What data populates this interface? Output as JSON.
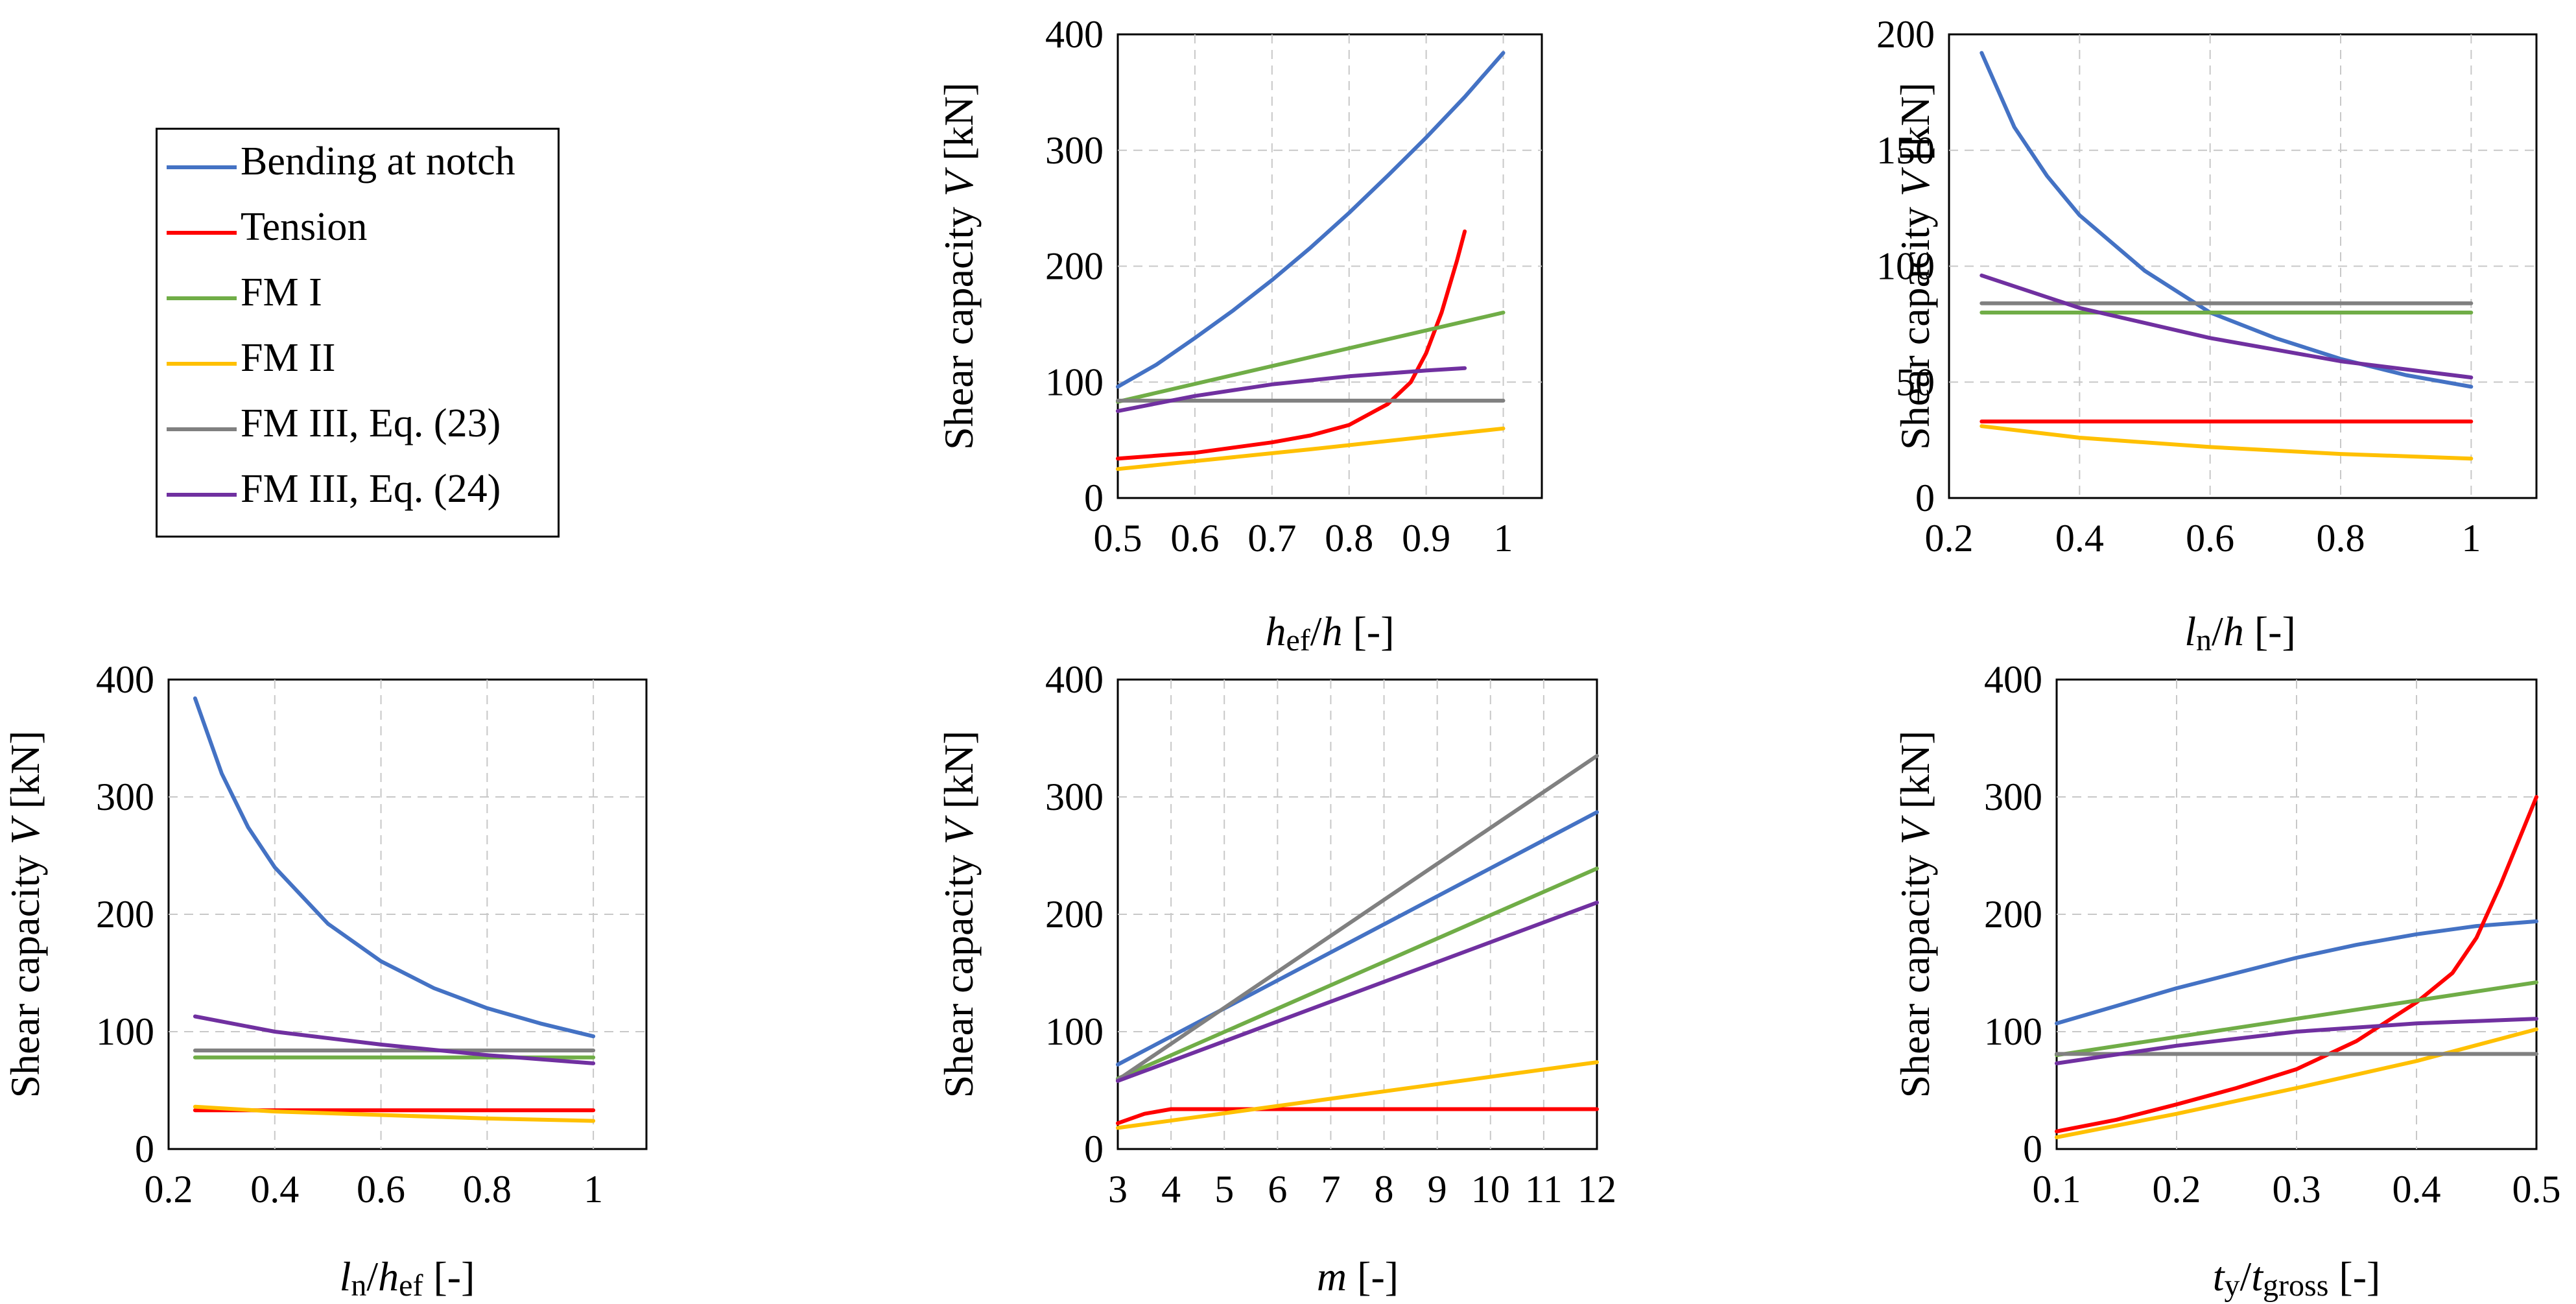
{
  "legend": {
    "items": [
      {
        "label": "Bending at notch",
        "color": "#4472C4"
      },
      {
        "label": "Tension",
        "color": "#FF0000"
      },
      {
        "label": "FM I",
        "color": "#70AD47"
      },
      {
        "label": "FM II",
        "color": "#FFC000"
      },
      {
        "label": "FM III, Eq. (23)",
        "color": "#808080"
      },
      {
        "label": "FM III, Eq. (24)",
        "color": "#7030A0"
      }
    ]
  },
  "chart_data": [
    {
      "id": "hef",
      "type": "line",
      "ylabel": "Shear capacity  V [kN]",
      "xlabel": [
        {
          "t": "h",
          "i": true
        },
        {
          "t": "ef",
          "s": true
        },
        {
          "t": "/"
        },
        {
          "t": "h",
          "i": true
        },
        {
          "t": " [-]"
        }
      ],
      "xlim": [
        0.5,
        1.05
      ],
      "ylim": [
        0,
        400
      ],
      "xticks": [
        0.5,
        0.6,
        0.7,
        0.8,
        0.9,
        1
      ],
      "xtick_labels": [
        "0.5",
        "0.6",
        "0.7",
        "0.8",
        "0.9",
        "1"
      ],
      "yticks": [
        0,
        100,
        200,
        300,
        400
      ],
      "ytick_labels": [
        "0",
        "100",
        "200",
        "300",
        "400"
      ],
      "series": [
        {
          "name": "Bending at notch",
          "x": [
            0.5,
            0.55,
            0.6,
            0.65,
            0.7,
            0.75,
            0.8,
            0.85,
            0.9,
            0.95,
            1.0
          ],
          "values": [
            96,
            115,
            138,
            162,
            188,
            216,
            246,
            278,
            311,
            346,
            384
          ]
        },
        {
          "name": "Tension",
          "x": [
            0.5,
            0.6,
            0.7,
            0.75,
            0.8,
            0.85,
            0.88,
            0.9,
            0.92,
            0.94,
            0.95
          ],
          "values": [
            34,
            39,
            48,
            54,
            63,
            81,
            100,
            125,
            160,
            205,
            230
          ]
        },
        {
          "name": "FM I",
          "x": [
            0.5,
            1.0
          ],
          "values": [
            83,
            160
          ]
        },
        {
          "name": "FM II",
          "x": [
            0.5,
            0.75,
            1.0
          ],
          "values": [
            25,
            42,
            60
          ]
        },
        {
          "name": "FM III, Eq. (23)",
          "x": [
            0.5,
            1.0
          ],
          "values": [
            84,
            84
          ]
        },
        {
          "name": "FM III, Eq. (24)",
          "x": [
            0.5,
            0.6,
            0.7,
            0.8,
            0.9,
            0.95
          ],
          "values": [
            75,
            88,
            98,
            105,
            110,
            112
          ]
        }
      ]
    },
    {
      "id": "ln_h",
      "type": "line",
      "ylabel": "Shear capacity  V [kN]",
      "xlabel": [
        {
          "t": "l",
          "i": true
        },
        {
          "t": "n",
          "s": true
        },
        {
          "t": "/"
        },
        {
          "t": "h",
          "i": true
        },
        {
          "t": " [-]"
        }
      ],
      "xlim": [
        0.2,
        1.1
      ],
      "ylim": [
        0,
        200
      ],
      "xticks": [
        0.2,
        0.4,
        0.6,
        0.8,
        1
      ],
      "xtick_labels": [
        "0.2",
        "0.4",
        "0.6",
        "0.8",
        "1"
      ],
      "yticks": [
        0,
        50,
        100,
        150,
        200
      ],
      "ytick_labels": [
        "0",
        "50",
        "100",
        "150",
        "200"
      ],
      "series": [
        {
          "name": "Bending at notch",
          "x": [
            0.25,
            0.3,
            0.35,
            0.4,
            0.5,
            0.6,
            0.7,
            0.8,
            0.9,
            1.0
          ],
          "values": [
            192,
            160,
            139,
            122,
            98,
            80,
            69,
            60,
            53,
            48
          ]
        },
        {
          "name": "Tension",
          "x": [
            0.25,
            1.0
          ],
          "values": [
            33,
            33
          ]
        },
        {
          "name": "FM I",
          "x": [
            0.25,
            1.0
          ],
          "values": [
            80,
            80
          ]
        },
        {
          "name": "FM II",
          "x": [
            0.25,
            0.4,
            0.6,
            0.8,
            1.0
          ],
          "values": [
            31,
            26,
            22,
            19,
            17
          ]
        },
        {
          "name": "FM III, Eq. (23)",
          "x": [
            0.25,
            1.0
          ],
          "values": [
            84,
            84
          ]
        },
        {
          "name": "FM III, Eq. (24)",
          "x": [
            0.25,
            0.4,
            0.6,
            0.8,
            1.0
          ],
          "values": [
            96,
            82,
            69,
            59,
            52
          ]
        }
      ]
    },
    {
      "id": "ln_hef",
      "type": "line",
      "ylabel": "Shear capacity  V [kN]",
      "xlabel": [
        {
          "t": "l",
          "i": true
        },
        {
          "t": "n",
          "s": true
        },
        {
          "t": "/"
        },
        {
          "t": "h",
          "i": true
        },
        {
          "t": "ef",
          "s": true
        },
        {
          "t": " [-]"
        }
      ],
      "xlim": [
        0.2,
        1.1
      ],
      "ylim": [
        0,
        400
      ],
      "xticks": [
        0.2,
        0.4,
        0.6,
        0.8,
        1
      ],
      "xtick_labels": [
        "0.2",
        "0.4",
        "0.6",
        "0.8",
        "1"
      ],
      "yticks": [
        0,
        100,
        200,
        300,
        400
      ],
      "ytick_labels": [
        "0",
        "100",
        "200",
        "300",
        "400"
      ],
      "series": [
        {
          "name": "Bending at notch",
          "x": [
            0.25,
            0.3,
            0.35,
            0.4,
            0.5,
            0.6,
            0.7,
            0.8,
            0.9,
            1.0
          ],
          "values": [
            384,
            320,
            274,
            240,
            192,
            160,
            137,
            120,
            107,
            96
          ]
        },
        {
          "name": "Tension",
          "x": [
            0.25,
            1.0
          ],
          "values": [
            33,
            33
          ]
        },
        {
          "name": "FM I",
          "x": [
            0.25,
            1.0
          ],
          "values": [
            78,
            78
          ]
        },
        {
          "name": "FM II",
          "x": [
            0.25,
            0.4,
            0.6,
            0.8,
            1.0
          ],
          "values": [
            36,
            32,
            29,
            26,
            24
          ]
        },
        {
          "name": "FM III, Eq. (23)",
          "x": [
            0.25,
            1.0
          ],
          "values": [
            84,
            84
          ]
        },
        {
          "name": "FM III, Eq. (24)",
          "x": [
            0.25,
            0.4,
            0.6,
            0.8,
            1.0
          ],
          "values": [
            113,
            100,
            89,
            80,
            73
          ]
        }
      ]
    },
    {
      "id": "m",
      "type": "line",
      "ylabel": "Shear capacity  V [kN]",
      "xlabel": [
        {
          "t": "m",
          "i": true
        },
        {
          "t": " [-]"
        }
      ],
      "xlim": [
        3,
        12
      ],
      "ylim": [
        0,
        400
      ],
      "xticks": [
        3,
        4,
        5,
        6,
        7,
        8,
        9,
        10,
        11,
        12
      ],
      "xtick_labels": [
        "3",
        "4",
        "5",
        "6",
        "7",
        "8",
        "9",
        "10",
        "11",
        "12"
      ],
      "yticks": [
        0,
        100,
        200,
        300,
        400
      ],
      "ytick_labels": [
        "0",
        "100",
        "200",
        "300",
        "400"
      ],
      "series": [
        {
          "name": "Bending at notch",
          "x": [
            3,
            12
          ],
          "values": [
            72,
            287
          ]
        },
        {
          "name": "Tension",
          "x": [
            3,
            3.5,
            4,
            12
          ],
          "values": [
            22,
            30,
            34,
            34
          ]
        },
        {
          "name": "FM I",
          "x": [
            3,
            12
          ],
          "values": [
            60,
            239
          ]
        },
        {
          "name": "FM II",
          "x": [
            3,
            12
          ],
          "values": [
            18,
            74
          ]
        },
        {
          "name": "FM III, Eq. (23)",
          "x": [
            3,
            12
          ],
          "values": [
            59,
            335
          ]
        },
        {
          "name": "FM III, Eq. (24)",
          "x": [
            3,
            12
          ],
          "values": [
            58,
            210
          ]
        }
      ]
    },
    {
      "id": "ty",
      "type": "line",
      "ylabel": "Shear capacity  V [kN]",
      "xlabel": [
        {
          "t": "t",
          "i": true
        },
        {
          "t": "y",
          "s": true
        },
        {
          "t": "/"
        },
        {
          "t": "t",
          "i": true
        },
        {
          "t": "gross",
          "s": true
        },
        {
          "t": " [-]"
        }
      ],
      "xlim": [
        0.1,
        0.5
      ],
      "ylim": [
        0,
        400
      ],
      "xticks": [
        0.1,
        0.2,
        0.3,
        0.4,
        0.5
      ],
      "xtick_labels": [
        "0.1",
        "0.2",
        "0.3",
        "0.4",
        "0.5"
      ],
      "yticks": [
        0,
        100,
        200,
        300,
        400
      ],
      "ytick_labels": [
        "0",
        "100",
        "200",
        "300",
        "400"
      ],
      "series": [
        {
          "name": "Bending at notch",
          "x": [
            0.1,
            0.15,
            0.2,
            0.25,
            0.3,
            0.35,
            0.4,
            0.45,
            0.5
          ],
          "values": [
            107,
            122,
            137,
            150,
            163,
            174,
            183,
            190,
            194
          ]
        },
        {
          "name": "Tension",
          "x": [
            0.1,
            0.15,
            0.2,
            0.25,
            0.3,
            0.35,
            0.4,
            0.43,
            0.45,
            0.47,
            0.5
          ],
          "values": [
            15,
            25,
            38,
            52,
            68,
            92,
            125,
            150,
            180,
            225,
            300
          ]
        },
        {
          "name": "FM I",
          "x": [
            0.1,
            0.5
          ],
          "values": [
            80,
            142
          ]
        },
        {
          "name": "FM II",
          "x": [
            0.1,
            0.2,
            0.3,
            0.4,
            0.5
          ],
          "values": [
            10,
            30,
            52,
            75,
            102
          ]
        },
        {
          "name": "FM III, Eq. (23)",
          "x": [
            0.1,
            0.5
          ],
          "values": [
            81,
            81
          ]
        },
        {
          "name": "FM III, Eq. (24)",
          "x": [
            0.1,
            0.2,
            0.3,
            0.4,
            0.5
          ],
          "values": [
            73,
            88,
            100,
            107,
            111
          ]
        }
      ]
    }
  ]
}
